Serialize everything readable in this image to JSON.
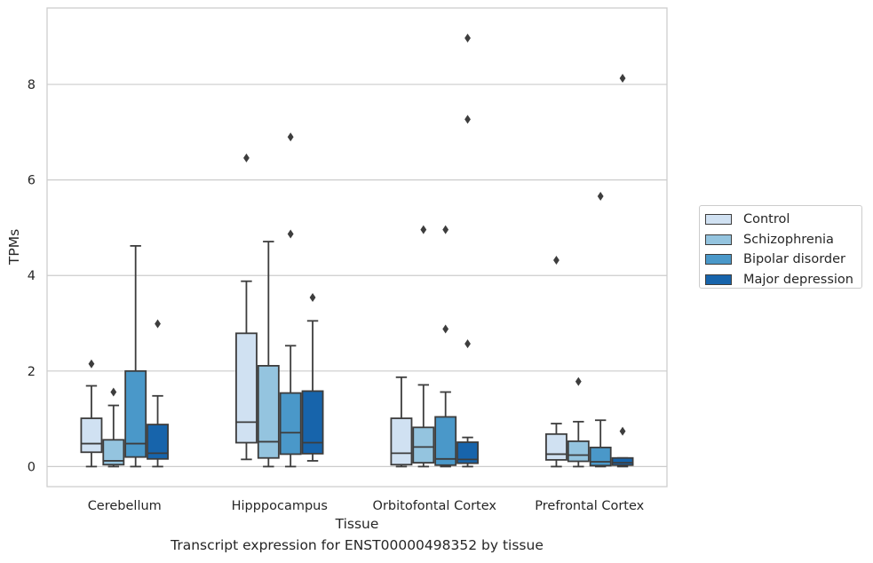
{
  "chart_data": {
    "type": "boxplot",
    "xlabel": "Tissue",
    "ylabel": "TPMs",
    "caption": "Transcript expression for ENST00000498352 by tissue",
    "ylim": [
      -0.42,
      9.6
    ],
    "yticks": [
      0,
      2,
      4,
      6,
      8
    ],
    "grid": true,
    "legend_position": "right",
    "categories": [
      "Cerebellum",
      "Hipppocampus",
      "Orbitofontal Cortex",
      "Prefrontal Cortex"
    ],
    "series": [
      {
        "name": "Control",
        "color": "#d0e1f2",
        "boxes": [
          {
            "min": 0.0,
            "q1": 0.3,
            "median": 0.48,
            "q3": 1.01,
            "max": 1.69,
            "outliers": [
              2.15
            ]
          },
          {
            "min": 0.15,
            "q1": 0.5,
            "median": 0.93,
            "q3": 2.79,
            "max": 3.88,
            "outliers": [
              6.46
            ]
          },
          {
            "min": 0.0,
            "q1": 0.04,
            "median": 0.28,
            "q3": 1.01,
            "max": 1.87,
            "outliers": []
          },
          {
            "min": 0.0,
            "q1": 0.14,
            "median": 0.26,
            "q3": 0.68,
            "max": 0.9,
            "outliers": [
              4.32
            ]
          }
        ]
      },
      {
        "name": "Schizophrenia",
        "color": "#94c4df",
        "boxes": [
          {
            "min": 0.0,
            "q1": 0.04,
            "median": 0.12,
            "q3": 0.56,
            "max": 1.28,
            "outliers": [
              1.56
            ]
          },
          {
            "min": 0.0,
            "q1": 0.18,
            "median": 0.52,
            "q3": 2.11,
            "max": 4.71,
            "outliers": []
          },
          {
            "min": 0.0,
            "q1": 0.08,
            "median": 0.41,
            "q3": 0.82,
            "max": 1.71,
            "outliers": [
              4.96
            ]
          },
          {
            "min": 0.0,
            "q1": 0.11,
            "median": 0.24,
            "q3": 0.53,
            "max": 0.94,
            "outliers": [
              1.78
            ]
          }
        ]
      },
      {
        "name": "Bipolar disorder",
        "color": "#4a98c9",
        "boxes": [
          {
            "min": 0.0,
            "q1": 0.2,
            "median": 0.48,
            "q3": 2.0,
            "max": 4.62,
            "outliers": []
          },
          {
            "min": 0.0,
            "q1": 0.26,
            "median": 0.71,
            "q3": 1.54,
            "max": 2.53,
            "outliers": [
              4.87,
              6.9
            ]
          },
          {
            "min": 0.0,
            "q1": 0.03,
            "median": 0.16,
            "q3": 1.04,
            "max": 1.56,
            "outliers": [
              2.88,
              4.96
            ]
          },
          {
            "min": 0.0,
            "q1": 0.02,
            "median": 0.1,
            "q3": 0.4,
            "max": 0.97,
            "outliers": [
              5.66
            ]
          }
        ]
      },
      {
        "name": "Major depression",
        "color": "#1764ab",
        "boxes": [
          {
            "min": 0.0,
            "q1": 0.16,
            "median": 0.28,
            "q3": 0.88,
            "max": 1.48,
            "outliers": [
              2.99
            ]
          },
          {
            "min": 0.12,
            "q1": 0.27,
            "median": 0.5,
            "q3": 1.58,
            "max": 3.05,
            "outliers": [
              3.54
            ]
          },
          {
            "min": 0.0,
            "q1": 0.07,
            "median": 0.15,
            "q3": 0.51,
            "max": 0.61,
            "outliers": [
              2.57,
              7.27,
              8.97
            ]
          },
          {
            "min": 0.0,
            "q1": 0.03,
            "median": 0.08,
            "q3": 0.18,
            "max": 0.18,
            "outliers": [
              0.74,
              8.13
            ]
          }
        ]
      }
    ]
  }
}
